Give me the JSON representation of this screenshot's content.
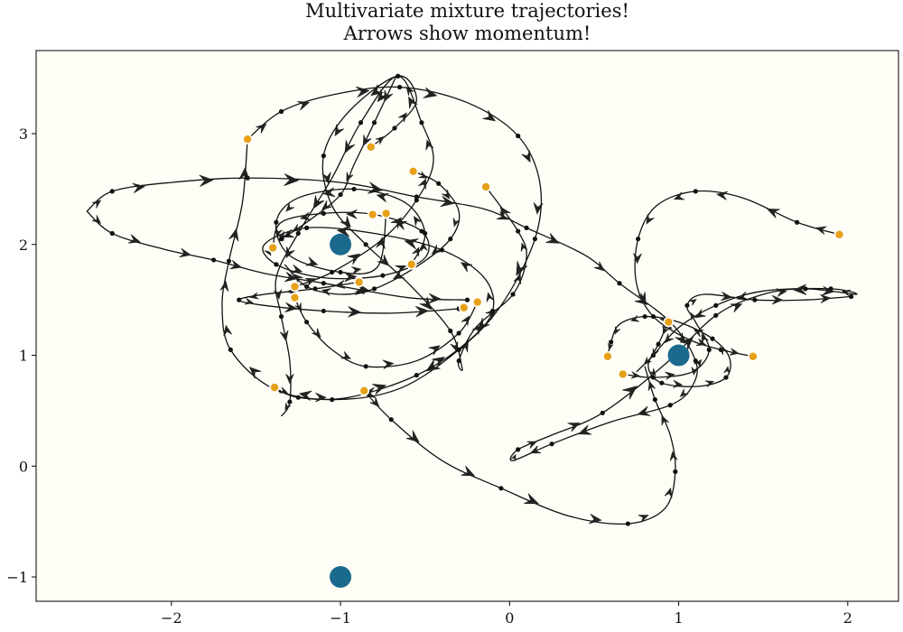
{
  "chart_data": {
    "type": "scatter",
    "title_lines": [
      "Multivariate mixture trajectories!",
      "Arrows show momentum!"
    ],
    "xlabel": "",
    "ylabel": "",
    "xlim": [
      -2.8,
      2.3
    ],
    "ylim": [
      -1.22,
      3.75
    ],
    "grid": false,
    "background": "#fffef6",
    "x_ticks": [
      -2,
      -1,
      0,
      1,
      2
    ],
    "y_ticks": [
      -1,
      0,
      1,
      2,
      3
    ],
    "x_tick_labels": [
      "−2",
      "−1",
      "0",
      "1",
      "2"
    ],
    "y_tick_labels": [
      "−1",
      "0",
      "1",
      "2",
      "3"
    ],
    "mixture_centers": {
      "color": "#1b6a8e",
      "points": [
        [
          -1,
          2
        ],
        [
          1,
          1
        ],
        [
          -1,
          -1
        ]
      ]
    },
    "trajectory_endpoints": {
      "color": "#e6a117",
      "points": [
        [
          -1.55,
          2.95
        ],
        [
          -0.82,
          2.88
        ],
        [
          -0.57,
          2.66
        ],
        [
          -0.14,
          2.52
        ],
        [
          -0.81,
          2.27
        ],
        [
          -0.73,
          2.28
        ],
        [
          -1.4,
          1.97
        ],
        [
          -0.58,
          1.82
        ],
        [
          -0.89,
          1.66
        ],
        [
          -1.27,
          1.62
        ],
        [
          -1.27,
          1.52
        ],
        [
          -0.27,
          1.43
        ],
        [
          -0.19,
          1.48
        ],
        [
          -1.39,
          0.71
        ],
        [
          -0.86,
          0.68
        ],
        [
          0.94,
          1.3
        ],
        [
          0.58,
          0.99
        ],
        [
          0.67,
          0.83
        ],
        [
          1.44,
          0.99
        ],
        [
          1.95,
          2.09
        ]
      ]
    },
    "trajectories": {
      "color": "#111111",
      "series": [
        {
          "points": [
            [
              1.95,
              2.09
            ],
            [
              1.7,
              2.2
            ],
            [
              1.38,
              2.42
            ],
            [
              1.1,
              2.48
            ],
            [
              0.87,
              2.35
            ],
            [
              0.76,
              2.05
            ],
            [
              0.75,
              1.65
            ],
            [
              0.85,
              1.35
            ],
            [
              1.05,
              1.15
            ],
            [
              1.25,
              1.05
            ],
            [
              1.44,
              0.99
            ]
          ]
        },
        {
          "points": [
            [
              -0.82,
              2.88
            ],
            [
              -0.68,
              3.05
            ],
            [
              -0.55,
              3.3
            ],
            [
              -0.66,
              3.52
            ],
            [
              -0.95,
              3.2
            ],
            [
              -1.1,
              2.8
            ],
            [
              -1.05,
              2.35
            ],
            [
              -0.85,
              2.0
            ],
            [
              -0.6,
              1.65
            ],
            [
              -0.35,
              1.22
            ],
            [
              -0.28,
              0.88
            ],
            [
              -0.3,
              0.95
            ],
            [
              -0.2,
              1.25
            ],
            [
              0.02,
              1.55
            ],
            [
              0.1,
              1.88
            ],
            [
              0.05,
              2.12
            ],
            [
              -0.14,
              2.52
            ]
          ]
        },
        {
          "points": [
            [
              -1.55,
              2.95
            ],
            [
              -1.35,
              3.2
            ],
            [
              -1.05,
              3.35
            ],
            [
              -0.65,
              3.42
            ],
            [
              -0.25,
              3.28
            ],
            [
              0.05,
              2.98
            ],
            [
              0.18,
              2.55
            ],
            [
              0.15,
              2.05
            ],
            [
              -0.05,
              1.45
            ],
            [
              -0.3,
              1.05
            ],
            [
              -0.65,
              0.7
            ],
            [
              -1.05,
              0.6
            ],
            [
              -1.4,
              0.7
            ],
            [
              -1.65,
              1.05
            ],
            [
              -1.7,
              1.45
            ],
            [
              -1.66,
              1.85
            ],
            [
              -1.58,
              2.38
            ],
            [
              -1.55,
              2.95
            ]
          ]
        },
        {
          "points": [
            [
              -2.5,
              2.3
            ],
            [
              -2.35,
              2.48
            ],
            [
              -2.0,
              2.56
            ],
            [
              -1.55,
              2.6
            ],
            [
              -1.0,
              2.56
            ],
            [
              -0.55,
              2.43
            ],
            [
              -0.15,
              2.32
            ],
            [
              0.1,
              2.15
            ],
            [
              0.45,
              1.9
            ],
            [
              0.65,
              1.65
            ],
            [
              0.95,
              1.3
            ],
            [
              1.1,
              0.95
            ],
            [
              1.08,
              0.72
            ],
            [
              0.95,
              0.55
            ],
            [
              0.6,
              0.4
            ],
            [
              0.25,
              0.2
            ],
            [
              0.02,
              0.05
            ],
            [
              0.05,
              0.15
            ],
            [
              0.25,
              0.28
            ],
            [
              0.55,
              0.48
            ],
            [
              0.92,
              0.92
            ],
            [
              1.22,
              1.36
            ],
            [
              1.5,
              1.55
            ],
            [
              1.75,
              1.6
            ],
            [
              2.05,
              1.55
            ],
            [
              1.9,
              1.6
            ],
            [
              1.5,
              1.58
            ],
            [
              1.22,
              1.45
            ],
            [
              1.0,
              1.25
            ],
            [
              0.85,
              1.0
            ],
            [
              0.75,
              0.85
            ]
          ]
        },
        {
          "points": [
            [
              -2.5,
              2.3
            ],
            [
              -2.35,
              2.1
            ],
            [
              -2.05,
              1.96
            ],
            [
              -1.75,
              1.86
            ],
            [
              -1.45,
              1.74
            ],
            [
              -1.1,
              1.65
            ],
            [
              -0.6,
              1.52
            ],
            [
              -0.25,
              1.5
            ]
          ]
        },
        {
          "points": [
            [
              -0.86,
              0.68
            ],
            [
              -0.7,
              0.42
            ],
            [
              -0.4,
              0.05
            ],
            [
              -0.05,
              -0.2
            ],
            [
              0.35,
              -0.45
            ],
            [
              0.7,
              -0.52
            ],
            [
              0.92,
              -0.38
            ],
            [
              0.98,
              -0.05
            ],
            [
              0.95,
              0.28
            ],
            [
              0.86,
              0.6
            ],
            [
              0.8,
              0.9
            ]
          ]
        },
        {
          "points": [
            [
              -1.39,
              0.71
            ],
            [
              -1.25,
              0.62
            ],
            [
              -0.95,
              0.62
            ],
            [
              -0.55,
              0.82
            ],
            [
              -0.25,
              1.12
            ],
            [
              -0.1,
              1.4
            ],
            [
              -0.15,
              1.7
            ],
            [
              -0.4,
              1.95
            ],
            [
              -0.8,
              2.1
            ],
            [
              -1.2,
              2.15
            ],
            [
              -1.45,
              2.0
            ],
            [
              -1.38,
              1.82
            ],
            [
              -1.1,
              1.7
            ],
            [
              -0.75,
              1.72
            ],
            [
              -0.5,
              1.88
            ],
            [
              -0.52,
              2.12
            ],
            [
              -0.8,
              2.27
            ],
            [
              -1.1,
              2.28
            ],
            [
              -1.35,
              2.2
            ],
            [
              -1.4,
              1.97
            ]
          ]
        },
        {
          "points": [
            [
              -0.58,
              1.82
            ],
            [
              -0.5,
              2.1
            ],
            [
              -0.62,
              2.38
            ],
            [
              -0.92,
              2.5
            ],
            [
              -1.25,
              2.42
            ],
            [
              -1.38,
              2.2
            ],
            [
              -1.3,
              1.9
            ],
            [
              -1.0,
              1.75
            ],
            [
              -0.78,
              1.8
            ],
            [
              -0.73,
              2.28
            ]
          ]
        },
        {
          "points": [
            [
              -1.27,
              1.62
            ],
            [
              -1.05,
              1.75
            ],
            [
              -0.75,
              2.05
            ],
            [
              -0.55,
              2.4
            ],
            [
              -0.45,
              2.75
            ],
            [
              -0.52,
              3.1
            ],
            [
              -0.66,
              3.52
            ],
            [
              -0.88,
              3.1
            ],
            [
              -1.05,
              2.6
            ],
            [
              -1.25,
              2.1
            ],
            [
              -1.38,
              1.7
            ],
            [
              -1.35,
              1.35
            ],
            [
              -1.3,
              0.95
            ],
            [
              -1.3,
              0.58
            ],
            [
              -1.35,
              0.45
            ]
          ]
        },
        {
          "points": [
            [
              -0.89,
              1.66
            ],
            [
              -1.15,
              1.6
            ],
            [
              -1.45,
              1.55
            ],
            [
              -1.6,
              1.5
            ],
            [
              -1.45,
              1.45
            ],
            [
              -1.1,
              1.4
            ],
            [
              -0.7,
              1.38
            ],
            [
              -0.3,
              1.42
            ]
          ]
        },
        {
          "points": [
            [
              -1.27,
              1.52
            ],
            [
              -1.2,
              1.3
            ],
            [
              -1.05,
              1.05
            ],
            [
              -0.85,
              0.9
            ],
            [
              -0.55,
              0.95
            ],
            [
              -0.3,
              1.2
            ],
            [
              -0.19,
              1.48
            ]
          ]
        },
        {
          "points": [
            [
              -0.67,
              3.52
            ],
            [
              -0.8,
              3.1
            ],
            [
              -0.92,
              2.72
            ],
            [
              -1.0,
              2.45
            ],
            [
              -1.2,
              2.2
            ],
            [
              -1.35,
              2.05
            ]
          ]
        },
        {
          "points": [
            [
              0.94,
              1.3
            ],
            [
              0.88,
              1.1
            ],
            [
              0.82,
              0.9
            ],
            [
              0.9,
              0.75
            ],
            [
              1.12,
              0.72
            ],
            [
              1.28,
              0.8
            ],
            [
              1.3,
              0.98
            ],
            [
              1.2,
              1.15
            ],
            [
              1.0,
              1.3
            ],
            [
              0.8,
              1.35
            ],
            [
              0.65,
              1.28
            ],
            [
              0.6,
              1.12
            ],
            [
              0.58,
              0.99
            ]
          ]
        },
        {
          "points": [
            [
              0.67,
              0.83
            ],
            [
              0.85,
              0.8
            ],
            [
              1.08,
              0.85
            ],
            [
              1.18,
              1.05
            ],
            [
              1.1,
              1.3
            ],
            [
              1.05,
              1.45
            ],
            [
              1.15,
              1.55
            ],
            [
              1.45,
              1.5
            ],
            [
              1.75,
              1.5
            ],
            [
              2.02,
              1.53
            ]
          ]
        },
        {
          "points": [
            [
              -0.57,
              2.66
            ],
            [
              -0.42,
              2.55
            ],
            [
              -0.3,
              2.3
            ],
            [
              -0.35,
              2.05
            ],
            [
              -0.55,
              1.8
            ],
            [
              -0.8,
              1.6
            ],
            [
              -1.0,
              1.55
            ],
            [
              -1.2,
              1.62
            ],
            [
              -1.33,
              1.82
            ]
          ]
        }
      ]
    }
  }
}
